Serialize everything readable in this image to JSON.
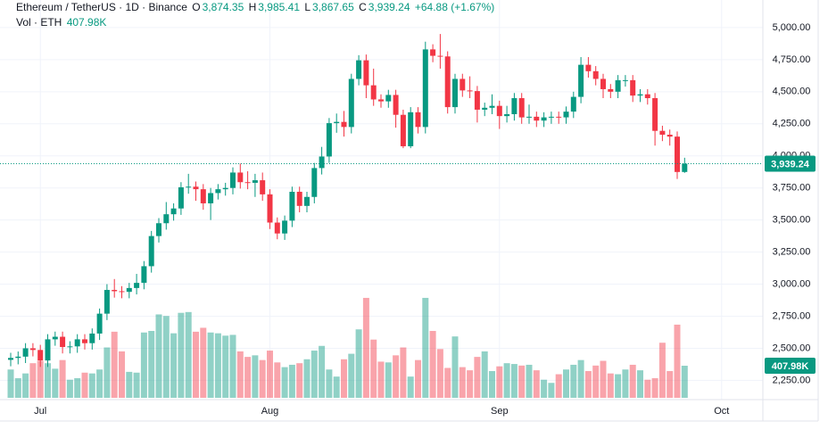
{
  "chart_data": {
    "type": "candlestick",
    "title": "Ethereum / TetherUS · 1D · Binance",
    "ohlc_legend": [
      {
        "key": "O",
        "value": "3,874.35"
      },
      {
        "key": "H",
        "value": "3,985.41"
      },
      {
        "key": "L",
        "value": "3,867.65"
      },
      {
        "key": "C",
        "value": "3,939.24"
      }
    ],
    "change": "+64.88 (+1.67%)",
    "volume_title": "Vol · ETH",
    "last_volume_label": "407.98K",
    "last_close_label": "3,939.24",
    "categories": [
      null,
      null,
      null,
      null,
      "Jul",
      null,
      null,
      null,
      null,
      null,
      null,
      null,
      null,
      null,
      null,
      null,
      null,
      null,
      null,
      null,
      null,
      null,
      null,
      null,
      null,
      null,
      null,
      null,
      null,
      null,
      null,
      null,
      null,
      null,
      null,
      "Aug",
      null,
      null,
      null,
      null,
      null,
      null,
      null,
      null,
      null,
      null,
      null,
      null,
      null,
      null,
      null,
      null,
      null,
      null,
      null,
      null,
      null,
      null,
      null,
      null,
      null,
      null,
      null,
      null,
      null,
      null,
      "Sep",
      null,
      null,
      null,
      null,
      null,
      null,
      null,
      null,
      null,
      null,
      null,
      null,
      null,
      null,
      null,
      null,
      null,
      null,
      null,
      null,
      null,
      null,
      null,
      null,
      null,
      null,
      null,
      null,
      null,
      "Oct"
    ],
    "open": [
      2410,
      2425,
      2435,
      2500,
      2487,
      2405,
      2570,
      2590,
      2510,
      2515,
      2570,
      2540,
      2615,
      2770,
      2955,
      2945,
      2940,
      2970,
      3010,
      3140,
      3375,
      3475,
      3545,
      3590,
      3755,
      3760,
      3740,
      3630,
      3710,
      3740,
      3750,
      3870,
      3795,
      3790,
      3810,
      3700,
      3480,
      3395,
      3495,
      3720,
      3610,
      3680,
      3905,
      3995,
      4255,
      4265,
      4225,
      4600,
      4745,
      4550,
      4440,
      4425,
      4475,
      4320,
      4075,
      4340,
      4225,
      4830,
      4780,
      4775,
      4380,
      4600,
      4510,
      4505,
      4360,
      4375,
      4390,
      4310,
      4325,
      4450,
      4300,
      4305,
      4275,
      4300,
      4305,
      4300,
      4345,
      4460,
      4710,
      4660,
      4600,
      4520,
      4500,
      4590,
      4590,
      4470,
      4480,
      4450,
      4195,
      4165,
      4150,
      3874.35,
      null,
      null,
      null,
      null,
      null
    ],
    "high": [
      2465,
      2475,
      2540,
      2540,
      2527,
      2610,
      2630,
      2630,
      2555,
      2610,
      2610,
      2655,
      2810,
      3000,
      3040,
      2985,
      3010,
      3080,
      3180,
      3415,
      3515,
      3640,
      3630,
      3795,
      3860,
      3800,
      3780,
      3750,
      3780,
      3790,
      3910,
      3940,
      3880,
      3860,
      3870,
      3740,
      3520,
      3535,
      3760,
      3760,
      3720,
      3945,
      4070,
      4295,
      4330,
      4350,
      4640,
      4785,
      4790,
      4680,
      4480,
      4515,
      4515,
      4360,
      4380,
      4380,
      4890,
      4870,
      4950,
      4815,
      4640,
      4640,
      4620,
      4545,
      4415,
      4480,
      4430,
      4390,
      4490,
      4490,
      4400,
      4345,
      4340,
      4345,
      4345,
      4385,
      4500,
      4770,
      4770,
      4700,
      4640,
      4560,
      4630,
      4630,
      4630,
      4520,
      4520,
      4490,
      4235,
      4205,
      4190,
      3985.41,
      null,
      null,
      null,
      null,
      null
    ],
    "low": [
      2360,
      2375,
      2385,
      2437,
      2355,
      2355,
      2520,
      2460,
      2460,
      2465,
      2490,
      2490,
      2565,
      2720,
      2895,
      2890,
      2890,
      2920,
      2960,
      3090,
      3325,
      3425,
      3495,
      3540,
      3705,
      3650,
      3580,
      3500,
      3660,
      3690,
      3700,
      3745,
      3740,
      3680,
      3650,
      3430,
      3350,
      3345,
      3445,
      3560,
      3560,
      3630,
      3855,
      3945,
      4180,
      4150,
      4175,
      4550,
      4450,
      4390,
      4375,
      4375,
      4220,
      4060,
      4060,
      4175,
      4175,
      4730,
      4680,
      4330,
      4330,
      4460,
      4450,
      4260,
      4310,
      4325,
      4210,
      4260,
      4275,
      4250,
      4250,
      4225,
      4225,
      4250,
      4250,
      4250,
      4295,
      4410,
      4610,
      4550,
      4450,
      4450,
      4450,
      4540,
      4420,
      4420,
      4400,
      4080,
      4115,
      4080,
      3820,
      3867.65,
      null,
      null,
      null,
      null,
      null
    ],
    "close": [
      2425,
      2435,
      2500,
      2487,
      2405,
      2570,
      2590,
      2510,
      2515,
      2570,
      2540,
      2615,
      2770,
      2955,
      2945,
      2940,
      2970,
      3010,
      3140,
      3375,
      3475,
      3545,
      3590,
      3755,
      3760,
      3740,
      3630,
      3710,
      3740,
      3750,
      3870,
      3795,
      3790,
      3810,
      3700,
      3480,
      3395,
      3495,
      3720,
      3610,
      3680,
      3905,
      3995,
      4255,
      4265,
      4225,
      4600,
      4745,
      4550,
      4440,
      4425,
      4475,
      4320,
      4075,
      4340,
      4225,
      4830,
      4780,
      4775,
      4380,
      4600,
      4510,
      4505,
      4360,
      4375,
      4390,
      4310,
      4325,
      4450,
      4300,
      4305,
      4275,
      4300,
      4305,
      4300,
      4345,
      4460,
      4710,
      4660,
      4600,
      4520,
      4500,
      4590,
      4590,
      4470,
      4480,
      4450,
      4195,
      4165,
      4150,
      3874.35,
      3939.24,
      null,
      null,
      null,
      null,
      null
    ],
    "volume": [
      360,
      250,
      310,
      440,
      470,
      440,
      370,
      480,
      230,
      250,
      320,
      310,
      360,
      640,
      840,
      590,
      330,
      320,
      830,
      850,
      1060,
      1040,
      820,
      1080,
      1090,
      840,
      890,
      830,
      820,
      790,
      800,
      590,
      520,
      540,
      480,
      600,
      450,
      390,
      420,
      440,
      490,
      600,
      660,
      360,
      270,
      490,
      560,
      870,
      1270,
      740,
      460,
      450,
      540,
      640,
      270,
      480,
      1270,
      850,
      620,
      380,
      780,
      390,
      350,
      520,
      590,
      340,
      400,
      440,
      430,
      410,
      420,
      350,
      230,
      190,
      300,
      360,
      420,
      480,
      340,
      410,
      470,
      310,
      300,
      360,
      420,
      350,
      230,
      250,
      700,
      340,
      930,
      407.98,
      null,
      null,
      null,
      null,
      null
    ],
    "up_color": "#089981",
    "down_color": "#f23645",
    "ylim": [
      2100,
      5215
    ],
    "yticks": [
      {
        "value": 2250,
        "label": "2,250.00"
      },
      {
        "value": 2500,
        "label": "2,500.00"
      },
      {
        "value": 2750,
        "label": "2,750.00"
      },
      {
        "value": 3000,
        "label": "3,000.00"
      },
      {
        "value": 3250,
        "label": "3,250.00"
      },
      {
        "value": 3500,
        "label": "3,500.00"
      },
      {
        "value": 3750,
        "label": "3,750.00"
      },
      {
        "value": 4000,
        "label": "4,000.00"
      },
      {
        "value": 4250,
        "label": "4,250.00"
      },
      {
        "value": 4500,
        "label": "4,500.00"
      },
      {
        "value": 4750,
        "label": "4,750.00"
      },
      {
        "value": 5000,
        "label": "5,000.00"
      }
    ],
    "grid": true
  }
}
